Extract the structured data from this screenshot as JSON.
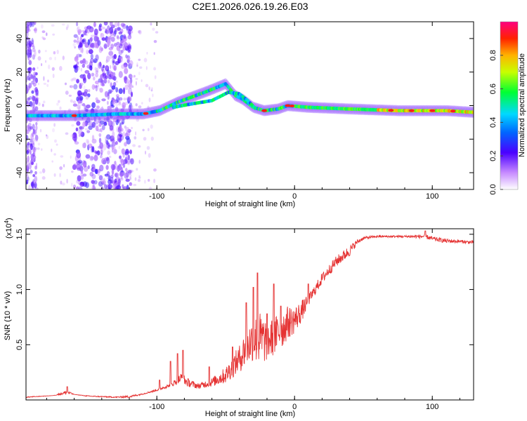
{
  "title": "C2E1.2026.026.19.26.E03",
  "colors": {
    "snr_line": "#e53333",
    "frame": "#000000",
    "background": "#ffffff"
  },
  "chart_data": [
    {
      "type": "heatmap",
      "name": "spectrogram",
      "xlabel": "Height of straight line (km)",
      "ylabel": "Frequency (Hz)",
      "xlim": [
        -195,
        130
      ],
      "ylim": [
        -50,
        50
      ],
      "xticks": [
        {
          "value": -100,
          "label": "-100"
        },
        {
          "value": 0,
          "label": "0"
        },
        {
          "value": 100,
          "label": "100"
        }
      ],
      "yticks": [
        {
          "value": -40,
          "label": "-40"
        },
        {
          "value": -20,
          "label": "-20"
        },
        {
          "value": 0,
          "label": "0"
        },
        {
          "value": 20,
          "label": "20"
        },
        {
          "value": 40,
          "label": "40"
        }
      ],
      "ridge": [
        {
          "x": -195,
          "f": -6
        },
        {
          "x": -160,
          "f": -6
        },
        {
          "x": -130,
          "f": -5
        },
        {
          "x": -110,
          "f": -5
        },
        {
          "x": -98,
          "f": -3
        },
        {
          "x": -85,
          "f": 2
        },
        {
          "x": -75,
          "f": 5
        },
        {
          "x": -62,
          "f": 9
        },
        {
          "x": -50,
          "f": 13
        },
        {
          "x": -43,
          "f": 6
        },
        {
          "x": -38,
          "f": 4
        },
        {
          "x": -30,
          "f": -1
        },
        {
          "x": -22,
          "f": -3
        },
        {
          "x": -12,
          "f": -2
        },
        {
          "x": -5,
          "f": 0
        },
        {
          "x": 10,
          "f": -1
        },
        {
          "x": 40,
          "f": -2
        },
        {
          "x": 75,
          "f": -3
        },
        {
          "x": 110,
          "f": -3
        },
        {
          "x": 130,
          "f": -4
        }
      ],
      "secondary_ridge": [
        {
          "x": -88,
          "f": -1
        },
        {
          "x": -75,
          "f": 1
        },
        {
          "x": -60,
          "f": 3
        },
        {
          "x": -48,
          "f": 8
        },
        {
          "x": -40,
          "f": 7
        },
        {
          "x": -34,
          "f": 3
        },
        {
          "x": -28,
          "f": -2
        }
      ],
      "colorbar": {
        "label": "Normalized spectral amplitude",
        "range": [
          0,
          1
        ],
        "ticks": [
          {
            "value": 0.0,
            "label": "0.0"
          },
          {
            "value": 0.2,
            "label": "0.2"
          },
          {
            "value": 0.4,
            "label": "0.4"
          },
          {
            "value": 0.6,
            "label": "0.6"
          },
          {
            "value": 0.8,
            "label": "0.8"
          }
        ]
      }
    },
    {
      "type": "line",
      "name": "snr",
      "xlabel": "Height of straight line (km)",
      "ylabel": "SNR (10 * v/v)",
      "multiplier": "(x10",
      "multiplier_exp": "4",
      "multiplier_close": ")",
      "xlim": [
        -195,
        130
      ],
      "ylim": [
        0,
        1.55
      ],
      "xticks": [
        {
          "value": -100,
          "label": "-100"
        },
        {
          "value": 0,
          "label": "0"
        },
        {
          "value": 100,
          "label": "100"
        }
      ],
      "yticks": [
        {
          "value": 0.5,
          "label": "0.5"
        },
        {
          "value": 1.0,
          "label": "1.0"
        },
        {
          "value": 1.5,
          "label": "1.5"
        }
      ],
      "envelope": [
        [
          -195,
          0.02,
          0.03
        ],
        [
          -175,
          0.04,
          0.04
        ],
        [
          -165,
          0.05,
          0.09
        ],
        [
          -160,
          0.05,
          0.05
        ],
        [
          -150,
          0.03,
          0.04
        ],
        [
          -130,
          0.02,
          0.03
        ],
        [
          -120,
          0.02,
          0.04
        ],
        [
          -110,
          0.05,
          0.06
        ],
        [
          -100,
          0.08,
          0.1
        ],
        [
          -90,
          0.12,
          0.15
        ],
        [
          -82,
          0.15,
          0.25
        ],
        [
          -78,
          0.12,
          0.2
        ],
        [
          -70,
          0.1,
          0.15
        ],
        [
          -60,
          0.12,
          0.2
        ],
        [
          -50,
          0.15,
          0.3
        ],
        [
          -40,
          0.25,
          0.5
        ],
        [
          -35,
          0.3,
          0.65
        ],
        [
          -30,
          0.35,
          0.75
        ],
        [
          -25,
          0.3,
          0.8
        ],
        [
          -20,
          0.35,
          0.72
        ],
        [
          -15,
          0.4,
          0.75
        ],
        [
          -10,
          0.45,
          0.8
        ],
        [
          -5,
          0.55,
          0.85
        ],
        [
          0,
          0.6,
          0.85
        ],
        [
          5,
          0.7,
          0.9
        ],
        [
          10,
          0.85,
          0.95
        ],
        [
          20,
          1.05,
          1.15
        ],
        [
          30,
          1.2,
          1.3
        ],
        [
          40,
          1.3,
          1.4
        ],
        [
          45,
          1.4,
          1.45
        ],
        [
          50,
          1.45,
          1.48
        ],
        [
          60,
          1.47,
          1.49
        ],
        [
          80,
          1.47,
          1.49
        ],
        [
          95,
          1.46,
          1.5
        ],
        [
          100,
          1.44,
          1.48
        ],
        [
          110,
          1.42,
          1.46
        ],
        [
          120,
          1.42,
          1.45
        ],
        [
          130,
          1.41,
          1.44
        ]
      ],
      "spikes": [
        {
          "x": -165,
          "y": 0.12
        },
        {
          "x": -98,
          "y": 0.18
        },
        {
          "x": -90,
          "y": 0.35
        },
        {
          "x": -85,
          "y": 0.42
        },
        {
          "x": -81,
          "y": 0.45
        },
        {
          "x": -62,
          "y": 0.3
        },
        {
          "x": -45,
          "y": 0.48
        },
        {
          "x": -35,
          "y": 0.88
        },
        {
          "x": -30,
          "y": 1.02
        },
        {
          "x": -27,
          "y": 1.15
        },
        {
          "x": -20,
          "y": 0.78
        },
        {
          "x": -15,
          "y": 1.05
        },
        {
          "x": -10,
          "y": 0.85
        },
        {
          "x": 10,
          "y": 1.05
        },
        {
          "x": 95,
          "y": 1.53
        }
      ]
    }
  ]
}
